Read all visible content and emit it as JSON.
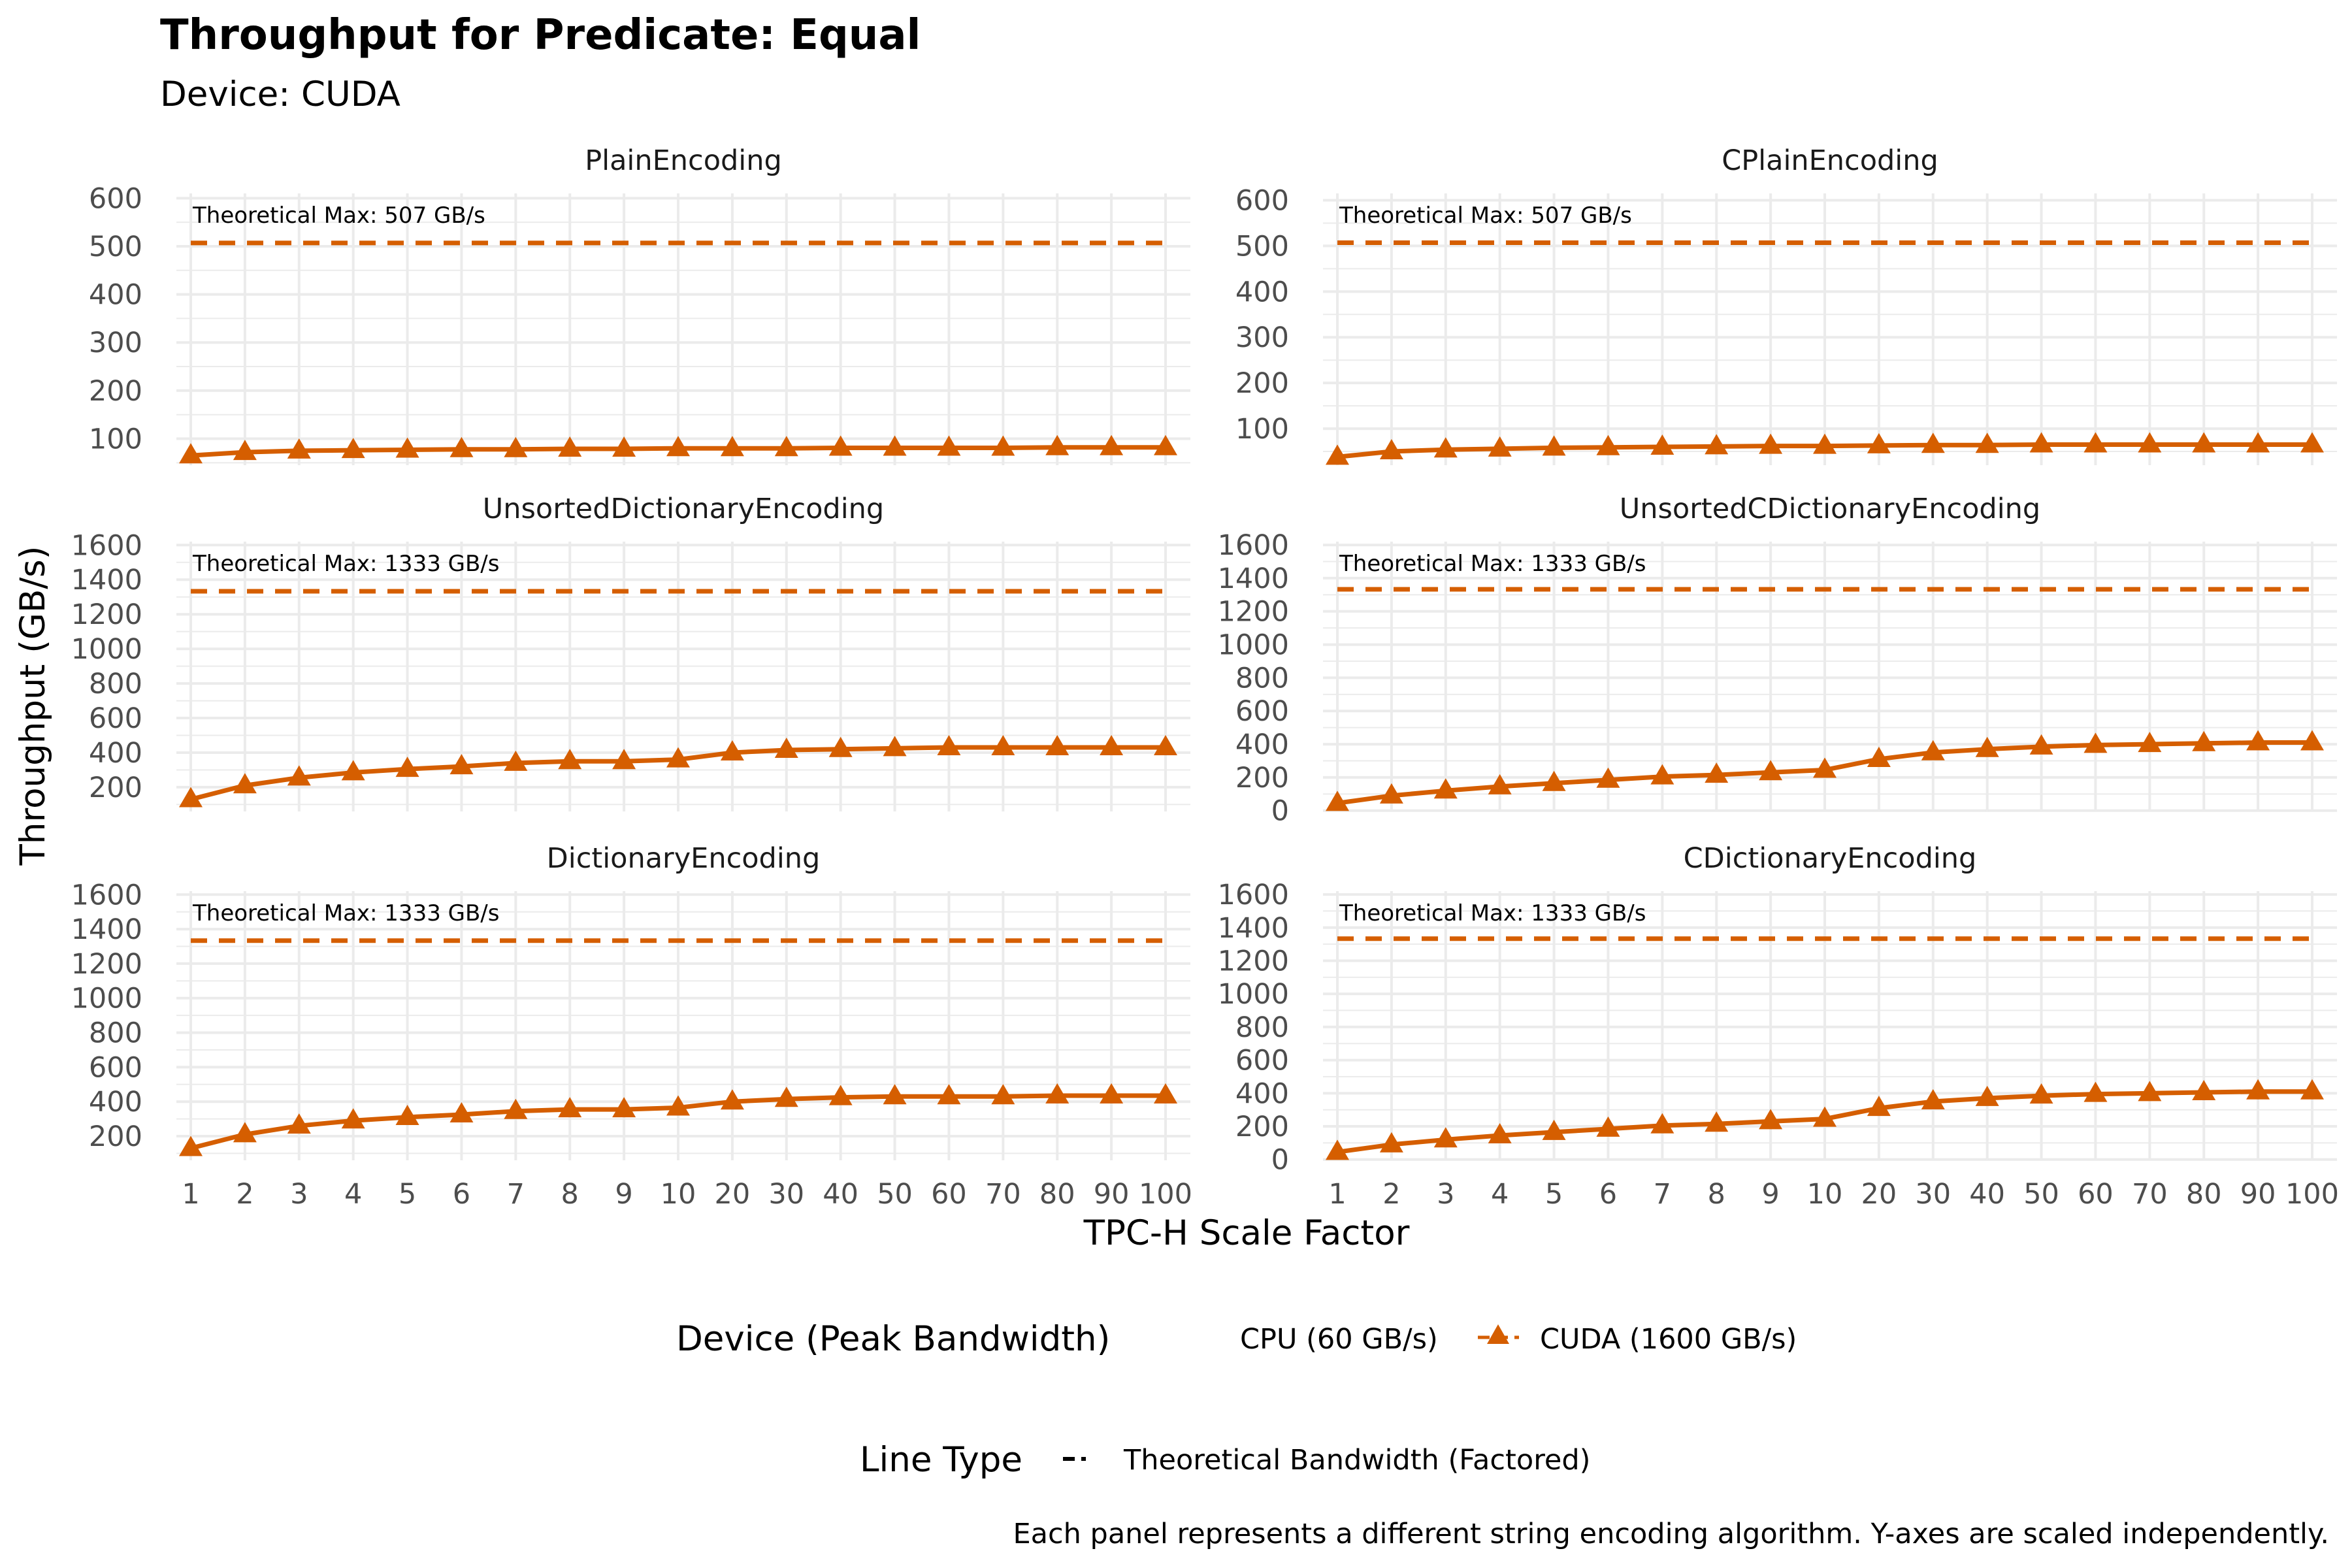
{
  "title": "Throughput for Predicate: Equal",
  "subtitle": "Device: CUDA",
  "xlabel": "TPC-H Scale Factor",
  "ylabel": "Throughput (GB/s)",
  "caption": "Each panel represents a different string encoding algorithm. Y-axes are scaled independently.",
  "colors": {
    "cuda": "#D55E00",
    "grid": "#EBEBEB",
    "text": "#4D4D4D"
  },
  "legend": {
    "device_title": "Device (Peak Bandwidth)",
    "device_items": [
      {
        "label": "CPU (60 GB/s)",
        "marker": "none"
      },
      {
        "label": "CUDA (1600 GB/s)",
        "marker": "triangle"
      }
    ],
    "linetype_title": "Line Type",
    "linetype_items": [
      {
        "label": "Theoretical Bandwidth (Factored)",
        "marker": "dashed"
      }
    ]
  },
  "chart_data": [
    {
      "type": "line",
      "panel": "PlainEncoding",
      "categories": [
        "1",
        "2",
        "3",
        "4",
        "5",
        "6",
        "7",
        "8",
        "9",
        "10",
        "20",
        "30",
        "40",
        "50",
        "60",
        "70",
        "80",
        "90",
        "100"
      ],
      "series": [
        {
          "name": "CUDA (1600 GB/s)",
          "values": [
            65,
            72,
            75,
            76,
            77,
            78,
            78,
            79,
            79,
            80,
            80,
            80,
            81,
            81,
            81,
            81,
            82,
            82,
            82
          ]
        }
      ],
      "theoretical_max": 507,
      "annotation": "Theoretical Max: 507 GB/s",
      "ylim": [
        45,
        610
      ],
      "yticks": [
        100,
        200,
        300,
        400,
        500,
        600
      ]
    },
    {
      "type": "line",
      "panel": "CPlainEncoding",
      "categories": [
        "1",
        "2",
        "3",
        "4",
        "5",
        "6",
        "7",
        "8",
        "9",
        "10",
        "20",
        "30",
        "40",
        "50",
        "60",
        "70",
        "80",
        "90",
        "100"
      ],
      "series": [
        {
          "name": "CUDA (1600 GB/s)",
          "values": [
            38,
            50,
            54,
            56,
            58,
            59,
            60,
            61,
            62,
            62,
            63,
            64,
            64,
            65,
            65,
            65,
            65,
            65,
            65
          ]
        }
      ],
      "theoretical_max": 507,
      "annotation": "Theoretical Max: 507 GB/s",
      "ylim": [
        20,
        615
      ],
      "yticks": [
        100,
        200,
        300,
        400,
        500,
        600
      ]
    },
    {
      "type": "line",
      "panel": "UnsortedDictionaryEncoding",
      "categories": [
        "1",
        "2",
        "3",
        "4",
        "5",
        "6",
        "7",
        "8",
        "9",
        "10",
        "20",
        "30",
        "40",
        "50",
        "60",
        "70",
        "80",
        "90",
        "100"
      ],
      "series": [
        {
          "name": "CUDA (1600 GB/s)",
          "values": [
            130,
            210,
            255,
            285,
            305,
            320,
            340,
            350,
            350,
            360,
            400,
            415,
            420,
            425,
            430,
            430,
            430,
            430,
            430
          ]
        }
      ],
      "theoretical_max": 1333,
      "annotation": "Theoretical Max: 1333 GB/s",
      "ylim": [
        60,
        1620
      ],
      "yticks": [
        200,
        400,
        600,
        800,
        1000,
        1200,
        1400,
        1600
      ]
    },
    {
      "type": "line",
      "panel": "UnsortedCDictionaryEncoding",
      "categories": [
        "1",
        "2",
        "3",
        "4",
        "5",
        "6",
        "7",
        "8",
        "9",
        "10",
        "20",
        "30",
        "40",
        "50",
        "60",
        "70",
        "80",
        "90",
        "100"
      ],
      "series": [
        {
          "name": "CUDA (1600 GB/s)",
          "values": [
            45,
            90,
            120,
            145,
            165,
            185,
            205,
            215,
            230,
            245,
            310,
            350,
            370,
            385,
            395,
            400,
            405,
            410,
            410
          ]
        }
      ],
      "theoretical_max": 1333,
      "annotation": "Theoretical Max: 1333 GB/s",
      "ylim": [
        -5,
        1620
      ],
      "yticks": [
        0,
        200,
        400,
        600,
        800,
        1000,
        1200,
        1400,
        1600
      ]
    },
    {
      "type": "line",
      "panel": "DictionaryEncoding",
      "categories": [
        "1",
        "2",
        "3",
        "4",
        "5",
        "6",
        "7",
        "8",
        "9",
        "10",
        "20",
        "30",
        "40",
        "50",
        "60",
        "70",
        "80",
        "90",
        "100"
      ],
      "series": [
        {
          "name": "CUDA (1600 GB/s)",
          "values": [
            130,
            210,
            260,
            290,
            310,
            325,
            345,
            355,
            355,
            365,
            400,
            415,
            425,
            430,
            430,
            430,
            435,
            435,
            435
          ]
        }
      ],
      "theoretical_max": 1333,
      "annotation": "Theoretical Max: 1333 GB/s",
      "ylim": [
        60,
        1620
      ],
      "yticks": [
        200,
        400,
        600,
        800,
        1000,
        1200,
        1400,
        1600
      ]
    },
    {
      "type": "line",
      "panel": "CDictionaryEncoding",
      "categories": [
        "1",
        "2",
        "3",
        "4",
        "5",
        "6",
        "7",
        "8",
        "9",
        "10",
        "20",
        "30",
        "40",
        "50",
        "60",
        "70",
        "80",
        "90",
        "100"
      ],
      "series": [
        {
          "name": "CUDA (1600 GB/s)",
          "values": [
            45,
            90,
            120,
            145,
            165,
            185,
            205,
            215,
            230,
            245,
            310,
            350,
            370,
            385,
            395,
            400,
            405,
            410,
            410
          ]
        }
      ],
      "theoretical_max": 1333,
      "annotation": "Theoretical Max: 1333 GB/s",
      "ylim": [
        -5,
        1620
      ],
      "yticks": [
        0,
        200,
        400,
        600,
        800,
        1000,
        1200,
        1400,
        1600
      ]
    }
  ]
}
